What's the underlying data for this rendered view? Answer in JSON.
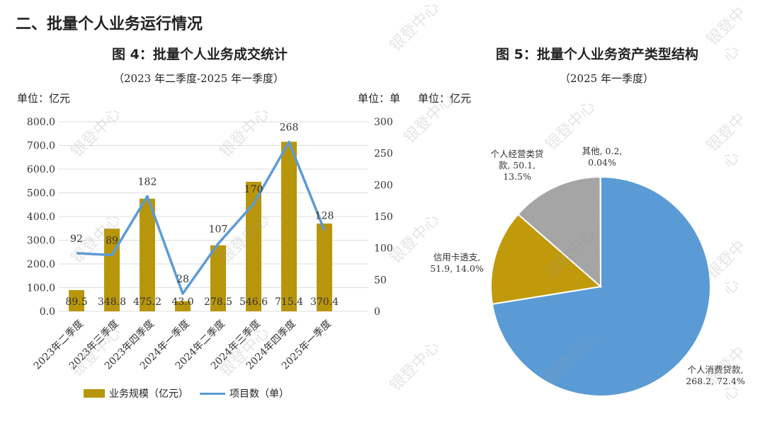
{
  "section_heading": "二、批量个人业务运行情况",
  "watermark": "银登中心",
  "chart_data": [
    {
      "type": "bar+line",
      "title": "图 4：批量个人业务成交统计",
      "subtitle": "（2023 年二季度-2025 年一季度）",
      "left_unit": "单位：亿元",
      "right_unit": "单位：单",
      "categories": [
        "2023年二季度",
        "2023年三季度",
        "2023年四季度",
        "2024年一季度",
        "2024年二季度",
        "2024年三季度",
        "2024年四季度",
        "2025年一季度"
      ],
      "series": [
        {
          "name": "业务规模（亿元）",
          "type": "bar",
          "axis": "left",
          "color": "#B8960C",
          "values": [
            89.5,
            348.8,
            475.2,
            43.0,
            278.5,
            546.6,
            715.4,
            370.4
          ],
          "labels": [
            "89.5",
            "348.8",
            "475.2",
            "43.0",
            "278.5",
            "546.6",
            "715.4",
            "370.4"
          ]
        },
        {
          "name": "项目数（单）",
          "type": "line",
          "axis": "right",
          "color": "#5B9BD5",
          "values": [
            92,
            89,
            182,
            28,
            107,
            170,
            268,
            128
          ]
        }
      ],
      "left_ticks": [
        "0.0",
        "100.0",
        "200.0",
        "300.0",
        "400.0",
        "500.0",
        "600.0",
        "700.0",
        "800.0"
      ],
      "right_ticks": [
        "0",
        "50",
        "100",
        "150",
        "200",
        "250",
        "300"
      ],
      "ylim_left": [
        0,
        800
      ],
      "ylim_right": [
        0,
        300
      ],
      "grid": true,
      "legend": "bottom"
    },
    {
      "type": "pie",
      "title": "图 5：批量个人业务资产类型结构",
      "subtitle": "（2025 年一季度）",
      "unit": "单位：亿元",
      "slices": [
        {
          "name": "个人消费贷款",
          "value": 268.2,
          "percent": 72.4,
          "label_lines": [
            "个人消费贷款,",
            "268.2, 72.4%"
          ],
          "color": "#5B9BD5"
        },
        {
          "name": "信用卡透支",
          "value": 51.9,
          "percent": 14.0,
          "label_lines": [
            "信用卡透支,",
            "51.9, 14.0%"
          ],
          "color": "#C09A0A"
        },
        {
          "name": "个人经营类贷款",
          "value": 50.1,
          "percent": 13.5,
          "label_lines": [
            "个人经营类贷",
            "款, 50.1,",
            "13.5%"
          ],
          "color": "#A5A5A5"
        },
        {
          "name": "其他",
          "value": 0.2,
          "percent": 0.04,
          "label_lines": [
            "其他, 0.2,",
            "0.04%"
          ],
          "color": "#FFC000"
        }
      ]
    }
  ]
}
